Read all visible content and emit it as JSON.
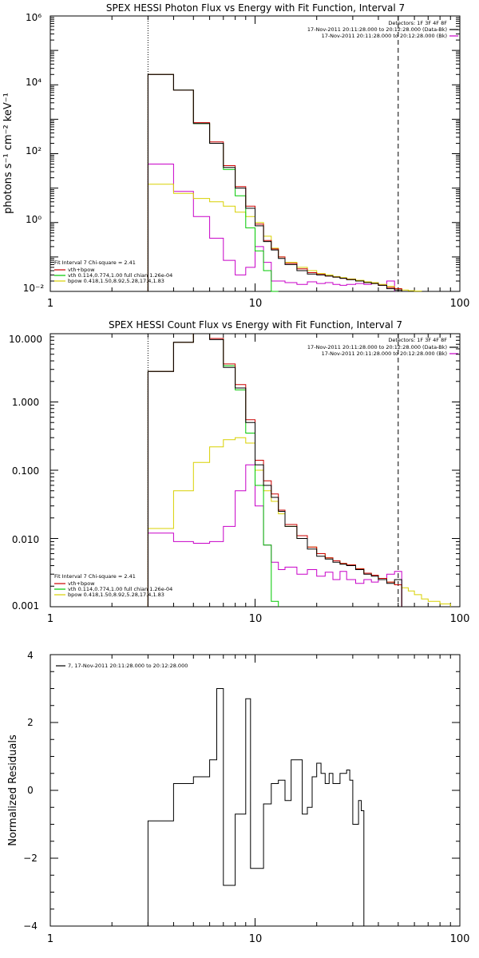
{
  "colors": {
    "sum": "#000000",
    "total": "#cc0000",
    "vth": "#00c800",
    "bpow": "#d8d000",
    "bk": "#c800c8",
    "axis": "#000000"
  },
  "chart_data": [
    {
      "id": "photon",
      "type": "line",
      "title": "SPEX HESSI Photon Flux vs Energy with Fit Function, Interval 7",
      "xlabel": "",
      "ylabel": "photons s⁻¹ cm⁻² keV⁻¹",
      "xscale": "log",
      "yscale": "log",
      "xlim": [
        1,
        100
      ],
      "ylim": [
        0.01,
        1000000
      ],
      "x_ticks": [
        "1",
        "10",
        "100"
      ],
      "y_ticks": [
        "10⁻²",
        "10⁰",
        "10²",
        "10⁴",
        "10⁶"
      ],
      "fit_range_keV": [
        3,
        50
      ],
      "detector_text": "Detectors: 1F 3F 4F 8F",
      "legend_top": [
        {
          "series": "sum",
          "text": "17-Nov-2011 20:11:28.000 to 20:12:28.000 (Data-Bk)"
        },
        {
          "series": "bk",
          "text": "17-Nov-2011 20:11:28.000 to 20:12:28.000 (Bk)"
        }
      ],
      "fit_info": "Fit Interval 7   Chi-square = 2.41",
      "legend_bottom": [
        {
          "series": "total",
          "text": "vth+bpow"
        },
        {
          "series": "vth",
          "text": "vth 0.114,0.774,1.00  full chian 1.26e-04"
        },
        {
          "series": "bpow",
          "text": "bpow 0.418,1.50,8.92,5.28,17.4,1.83"
        }
      ],
      "edges": [
        3,
        4,
        5,
        6,
        7,
        8,
        9,
        10,
        11,
        12,
        13,
        14,
        16,
        18,
        20,
        22,
        24,
        26,
        28,
        31,
        34,
        37,
        40,
        44,
        48,
        52,
        56,
        60,
        65
      ],
      "series": [
        {
          "key": "sum",
          "values": [
            20000,
            7000,
            750,
            200,
            40,
            10,
            2.6,
            0.8,
            0.28,
            0.16,
            0.09,
            0.06,
            0.04,
            0.032,
            0.03,
            0.028,
            0.026,
            0.024,
            0.022,
            0.02,
            0.018,
            0.017,
            0.015,
            0.012,
            0.011
          ]
        },
        {
          "key": "total",
          "values": [
            20000,
            7000,
            800,
            220,
            45,
            11,
            3,
            0.9,
            0.3,
            0.17,
            0.1,
            0.065,
            0.045,
            0.035,
            0.031,
            0.028,
            0.026,
            0.024,
            0.022,
            0.02,
            0.018,
            0.017,
            0.015,
            0.013,
            0.012
          ]
        },
        {
          "key": "vth",
          "values": [
            20000,
            7000,
            750,
            200,
            35,
            6,
            0.7,
            0.15,
            0.04,
            0.01
          ]
        },
        {
          "key": "bpow",
          "values": [
            13,
            7,
            5,
            4,
            3,
            2,
            1.5,
            1,
            0.4,
            0.18,
            0.1,
            0.07,
            0.05,
            0.04,
            0.033,
            0.03,
            0.027,
            0.025,
            0.023,
            0.021,
            0.019,
            0.018,
            0.016,
            0.014,
            0.012,
            0.011,
            0.0105,
            0.0102
          ]
        },
        {
          "key": "bk",
          "values": [
            50,
            8,
            1.5,
            0.35,
            0.08,
            0.03,
            0.05,
            0.2,
            0.07,
            0.02,
            0.02,
            0.018,
            0.016,
            0.019,
            0.017,
            0.018,
            0.016,
            0.015,
            0.016,
            0.017,
            0.016,
            0.018,
            0.015,
            0.02
          ]
        }
      ]
    },
    {
      "id": "count",
      "type": "line",
      "title": "SPEX HESSI Count Flux vs Energy with Fit Function, Interval 7",
      "xlabel": "",
      "ylabel": "",
      "xscale": "log",
      "yscale": "log",
      "xlim": [
        1,
        100
      ],
      "ylim": [
        0.001,
        10
      ],
      "x_ticks": [
        "1",
        "10",
        "100"
      ],
      "y_ticks": [
        "0.001",
        "0.010",
        "0.100",
        "1.000",
        "10.000"
      ],
      "fit_range_keV": [
        3,
        50
      ],
      "detector_text": "Detectors: 1F 3F 4F 8F",
      "legend_top": [
        {
          "series": "sum",
          "text": "17-Nov-2011 20:11:28.000 to 20:12:28.000 (Data-Bk)"
        },
        {
          "series": "bk",
          "text": "17-Nov-2011 20:11:28.000 to 20:12:28.000 (Bk)"
        }
      ],
      "fit_info": "Fit Interval 7   Chi-square = 2.41",
      "legend_bottom": [
        {
          "series": "total",
          "text": "vth+bpow"
        },
        {
          "series": "vth",
          "text": "vth 0.114,0.774,1.00  full chian 1.26e-04"
        },
        {
          "series": "bpow",
          "text": "bpow 0.418,1.50,8.92,5.28,17.4,1.83"
        }
      ],
      "edges": [
        3,
        4,
        5,
        6,
        7,
        8,
        9,
        10,
        11,
        12,
        13,
        14,
        16,
        18,
        20,
        22,
        24,
        26,
        28,
        31,
        34,
        37,
        40,
        44,
        48,
        52,
        56,
        60,
        65,
        70,
        80,
        90
      ],
      "series": [
        {
          "key": "sum",
          "values": [
            2.8,
            7.5,
            10,
            8.2,
            3.2,
            1.6,
            0.5,
            0.12,
            0.06,
            0.04,
            0.025,
            0.015,
            0.01,
            0.007,
            0.0055,
            0.005,
            0.0045,
            0.0042,
            0.004,
            0.0035,
            0.003,
            0.0028,
            0.0025,
            0.0022,
            0.0025
          ]
        },
        {
          "key": "total",
          "values": [
            2.8,
            7.5,
            10,
            8.5,
            3.6,
            1.8,
            0.55,
            0.14,
            0.07,
            0.045,
            0.026,
            0.016,
            0.011,
            0.0075,
            0.006,
            0.0052,
            0.0047,
            0.0043,
            0.0041,
            0.0036,
            0.0031,
            0.0029,
            0.0026,
            0.0023,
            0.0021
          ]
        },
        {
          "key": "vth",
          "values": [
            2.8,
            7.5,
            10,
            8.5,
            3.4,
            1.5,
            0.35,
            0.06,
            0.008,
            0.0012
          ]
        },
        {
          "key": "bpow",
          "values": [
            0.014,
            0.05,
            0.13,
            0.22,
            0.28,
            0.3,
            0.25,
            0.1,
            0.05,
            0.035,
            0.023,
            0.015,
            0.01,
            0.0075,
            0.006,
            0.0052,
            0.0047,
            0.0043,
            0.0041,
            0.0036,
            0.0031,
            0.0029,
            0.0026,
            0.0023,
            0.0021,
            0.0019,
            0.0017,
            0.0015,
            0.0013,
            0.0012,
            0.0011,
            0.001
          ]
        },
        {
          "key": "bk",
          "values": [
            0.012,
            0.009,
            0.0085,
            0.009,
            0.015,
            0.05,
            0.12,
            0.03,
            0.008,
            0.0045,
            0.0035,
            0.0038,
            0.003,
            0.0035,
            0.0028,
            0.0032,
            0.0025,
            0.0033,
            0.0025,
            0.0022,
            0.0025,
            0.0023,
            0.0025,
            0.003,
            0.0033
          ]
        }
      ]
    },
    {
      "id": "resid",
      "type": "line",
      "title": "",
      "xlabel": "",
      "ylabel": "Normalized Residuals",
      "xscale": "log",
      "yscale": "linear",
      "xlim": [
        1,
        100
      ],
      "ylim": [
        -4,
        4
      ],
      "x_ticks": [
        "1",
        "10",
        "100"
      ],
      "y_ticks": [
        "−4",
        "−2",
        "0",
        "2",
        "4"
      ],
      "legend_text": "7, 17-Nov-2011 20:11:28.000 to 20:12:28.000",
      "edges": [
        3,
        3.5,
        4,
        4.5,
        5,
        5.5,
        6,
        6.5,
        7,
        7.5,
        8,
        8.5,
        9,
        9.5,
        10,
        11,
        12,
        13,
        14,
        15,
        16,
        17,
        18,
        19,
        20,
        21,
        22,
        23,
        24,
        25,
        26,
        27,
        28,
        29,
        30,
        31,
        32,
        33,
        34,
        35,
        36,
        37,
        38,
        39,
        40,
        41,
        42,
        43,
        44,
        45,
        46,
        47,
        48,
        49,
        50
      ],
      "series": [
        {
          "key": "sum",
          "values": [
            -0.9,
            -0.9,
            0.2,
            0.2,
            0.4,
            0.4,
            0.9,
            3.0,
            -2.8,
            -2.8,
            -0.7,
            -0.7,
            2.7,
            -2.3,
            -2.3,
            -0.4,
            0.2,
            0.3,
            -0.3,
            0.9,
            0.9,
            -0.7,
            -0.5,
            0.4,
            0.8,
            0.5,
            0.2,
            0.5,
            0.2,
            0.2,
            0.5,
            0.5,
            0.6,
            0.3,
            -1.0,
            -1.0,
            -0.3,
            -0.6
          ]
        }
      ]
    }
  ]
}
